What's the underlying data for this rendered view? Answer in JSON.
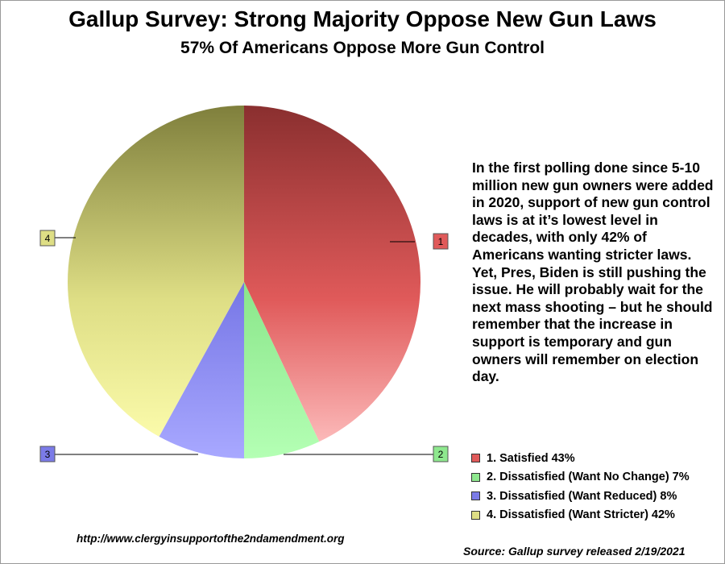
{
  "chart_data": {
    "type": "pie",
    "title": "Gallup Survey: Strong Majority Oppose New Gun Laws",
    "subtitle": "57% Of Americans Oppose More Gun Control",
    "slices": [
      {
        "marker": "1",
        "label": "1. Satisfied 43%",
        "value": 43,
        "color": "#e05a5a",
        "dark": "#8a2f2f",
        "light": "#ffc4c4"
      },
      {
        "marker": "2",
        "label": "2. Dissatisfied (Want No Change) 7%",
        "value": 7,
        "color": "#8ee88e",
        "dark": "#5fce5f",
        "light": "#b4ffb4"
      },
      {
        "marker": "3",
        "label": "3. Dissatisfied (Want Reduced) 8%",
        "value": 8,
        "color": "#7b7be8",
        "dark": "#3a3aaa",
        "light": "#a8a8ff"
      },
      {
        "marker": "4",
        "label": "4. Dissatisfied (Want Stricter) 42%",
        "value": 42,
        "color": "#dede85",
        "dark": "#7f7f3c",
        "light": "#ffffb0"
      }
    ],
    "start_angle_deg": 0,
    "direction": "clockwise",
    "legend_position": "bottom-right"
  },
  "commentary": "In the first polling done since 5-10 million new gun owners were added in 2020, support of new gun control laws is at it’s lowest level in decades, with only 42% of Americans wanting stricter laws.  Yet, Pres, Biden is still pushing the issue.  He will probably wait for the next mass shooting – but he should remember that the increase in support is temporary and gun owners will remember on election day.",
  "website": "http://www.clergyinsupportofthe2ndamendment.org",
  "source": "Source: Gallup survey released 2/19/2021"
}
